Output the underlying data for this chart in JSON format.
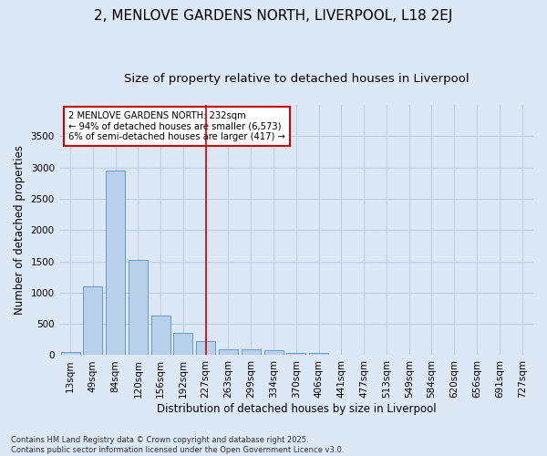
{
  "title": "2, MENLOVE GARDENS NORTH, LIVERPOOL, L18 2EJ",
  "subtitle": "Size of property relative to detached houses in Liverpool",
  "xlabel": "Distribution of detached houses by size in Liverpool",
  "ylabel": "Number of detached properties",
  "categories": [
    "13sqm",
    "49sqm",
    "84sqm",
    "120sqm",
    "156sqm",
    "192sqm",
    "227sqm",
    "263sqm",
    "299sqm",
    "334sqm",
    "370sqm",
    "406sqm",
    "441sqm",
    "477sqm",
    "513sqm",
    "549sqm",
    "584sqm",
    "620sqm",
    "656sqm",
    "691sqm",
    "727sqm"
  ],
  "values": [
    50,
    1100,
    2950,
    1520,
    640,
    350,
    220,
    95,
    90,
    80,
    40,
    30,
    5,
    0,
    0,
    0,
    0,
    0,
    0,
    0,
    0
  ],
  "bar_color": "#b8d0ea",
  "bar_edge_color": "#6699cc",
  "vline_x": 6,
  "vline_color": "#cc0000",
  "annotation_text": "2 MENLOVE GARDENS NORTH: 232sqm\n← 94% of detached houses are smaller (6,573)\n6% of semi-detached houses are larger (417) →",
  "annotation_box_color": "#ffffff",
  "annotation_edge_color": "#cc0000",
  "background_color": "#dce8f5",
  "plot_background": "#dce8f5",
  "grid_color": "#c0d0e4",
  "footer": "Contains HM Land Registry data © Crown copyright and database right 2025.\nContains public sector information licensed under the Open Government Licence v3.0.",
  "ylim": [
    0,
    4000
  ],
  "yticks": [
    0,
    500,
    1000,
    1500,
    2000,
    2500,
    3000,
    3500
  ],
  "title_fontsize": 11,
  "subtitle_fontsize": 9.5,
  "axis_label_fontsize": 8.5,
  "tick_fontsize": 7.5,
  "footer_fontsize": 6
}
